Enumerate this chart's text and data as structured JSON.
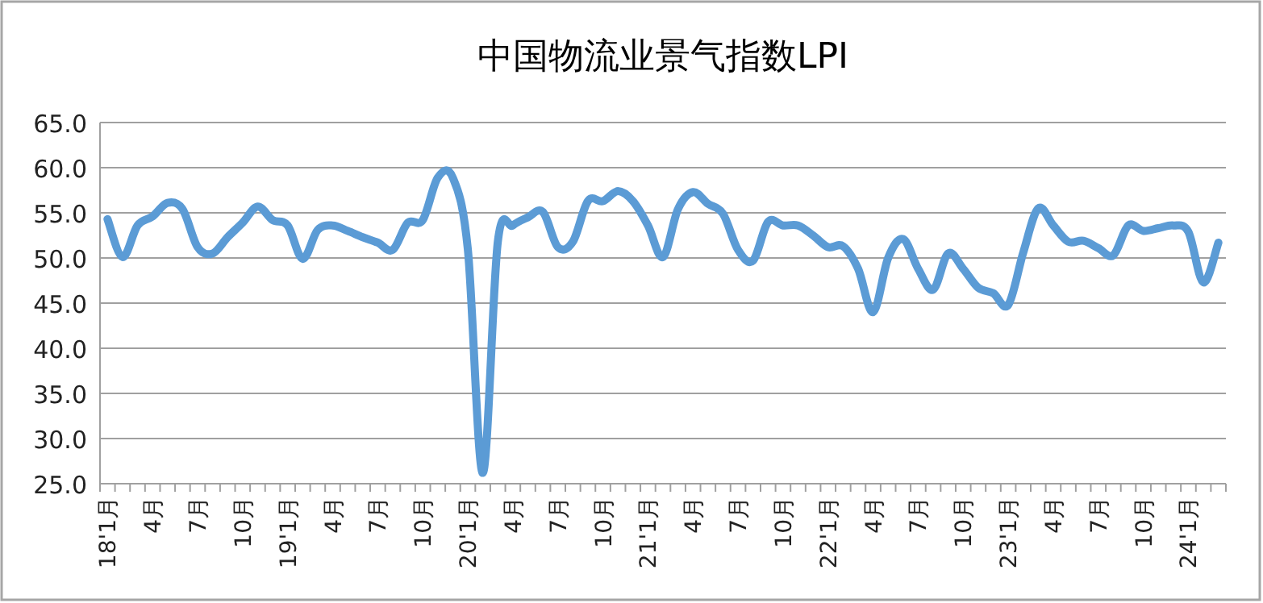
{
  "chart_data": {
    "type": "line",
    "title": "中国物流业景气指数LPI",
    "categories": [
      "18'1月",
      null,
      null,
      "4月",
      null,
      null,
      "7月",
      null,
      null,
      "10月",
      null,
      null,
      "19'1月",
      null,
      null,
      "4月",
      null,
      null,
      "7月",
      null,
      null,
      "10月",
      null,
      null,
      "20'1月",
      null,
      null,
      "4月",
      null,
      null,
      "7月",
      null,
      null,
      "10月",
      null,
      null,
      "21'1月",
      null,
      null,
      "4月",
      null,
      null,
      "7月",
      null,
      null,
      "10月",
      null,
      null,
      "22'1月",
      null,
      null,
      "4月",
      null,
      null,
      "7月",
      null,
      null,
      "10月",
      null,
      null,
      "23'1月",
      null,
      null,
      "4月",
      null,
      null,
      "7月",
      null,
      null,
      "10月",
      null,
      null,
      "24'1月",
      null,
      null
    ],
    "series": [
      {
        "color": "#5b9bd5",
        "values": [
          54.3,
          50.1,
          53.6,
          54.6,
          56.1,
          55.4,
          51.2,
          50.5,
          52.3,
          53.9,
          55.7,
          54.2,
          53.6,
          49.9,
          53.1,
          53.6,
          53.0,
          52.3,
          51.7,
          50.9,
          53.9,
          54.2,
          58.9,
          58.9,
          51.0,
          26.2,
          51.8,
          53.6,
          54.5,
          55.1,
          51.2,
          51.8,
          56.3,
          56.3,
          57.4,
          56.3,
          53.6,
          50.1,
          55.4,
          57.3,
          56.0,
          54.9,
          50.9,
          49.7,
          54.0,
          53.6,
          53.6,
          52.5,
          51.2,
          51.3,
          48.8,
          44.0,
          50.0,
          52.1,
          48.8,
          46.5,
          50.5,
          48.8,
          46.7,
          46.1,
          44.8,
          50.6,
          55.5,
          53.6,
          51.8,
          51.9,
          51.1,
          50.3,
          53.6,
          53.0,
          53.3,
          53.6,
          52.9,
          47.3,
          51.7
        ]
      }
    ],
    "ylim": [
      25,
      65
    ],
    "yticks": [
      {
        "value": 25,
        "label": "25.0"
      },
      {
        "value": 30,
        "label": "30.0"
      },
      {
        "value": 35,
        "label": "35.0"
      },
      {
        "value": 40,
        "label": "40.0"
      },
      {
        "value": 45,
        "label": "45.0"
      },
      {
        "value": 50,
        "label": "50.0"
      },
      {
        "value": 55,
        "label": "55.0"
      },
      {
        "value": 60,
        "label": "60.0"
      },
      {
        "value": 65,
        "label": "65.0"
      }
    ],
    "grid": "y",
    "line_style": "solid",
    "marker": "none"
  }
}
